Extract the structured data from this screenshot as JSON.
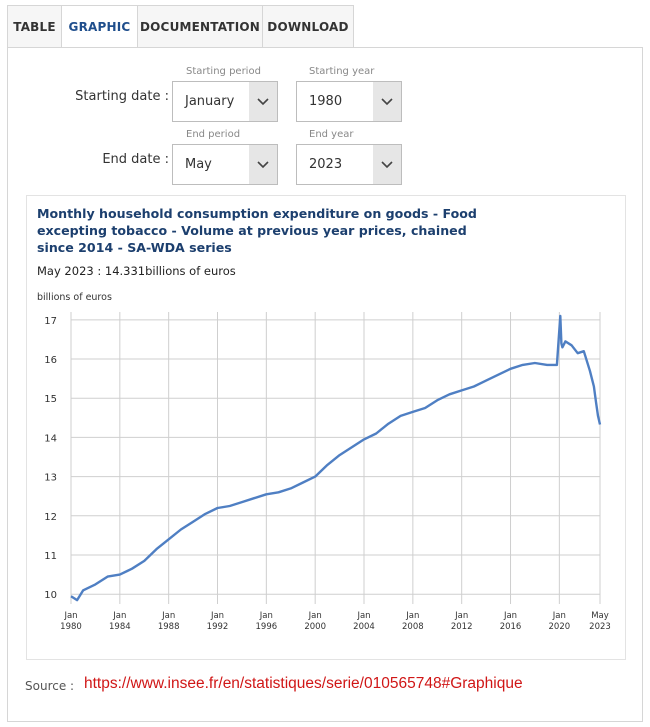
{
  "tabs": [
    {
      "label": "TABLE"
    },
    {
      "label": "GRAPHIC"
    },
    {
      "label": "DOCUMENTATION"
    },
    {
      "label": "DOWNLOAD"
    }
  ],
  "active_tab": "GRAPHIC",
  "form": {
    "start_label": "Starting date :",
    "end_label": "End date :",
    "start_period_caption": "Starting period",
    "start_year_caption": "Starting year",
    "end_period_caption": "End period",
    "end_year_caption": "End year",
    "start_period_value": "January",
    "start_year_value": "1980",
    "end_period_value": "May",
    "end_year_value": "2023"
  },
  "source": {
    "label": "Source :",
    "url": "https://www.insee.fr/en/statistiques/serie/010565748#Graphique"
  },
  "colors": {
    "line": "#4f7fc3",
    "title": "#1c3f6e",
    "link": "#d01616",
    "grid": "#cfcfcf"
  },
  "chart_data": {
    "type": "line",
    "title": "Monthly household consumption expenditure on goods - Food excepting tobacco - Volume at previous year prices, chained since 2014 - SA-WDA series",
    "latest_text": "May 2023 : 14.331billions of euros",
    "ylabel": "billions of euros",
    "xlabel": "",
    "ylim": [
      9.75,
      17.2
    ],
    "yticks": [
      10,
      11,
      12,
      13,
      14,
      15,
      16,
      17
    ],
    "x_start": 1980.0,
    "x_end": 2023.33,
    "xticks": [
      {
        "x": 1980.0,
        "m": "Jan",
        "y": "1980"
      },
      {
        "x": 1984.0,
        "m": "Jan",
        "y": "1984"
      },
      {
        "x": 1988.0,
        "m": "Jan",
        "y": "1988"
      },
      {
        "x": 1992.0,
        "m": "Jan",
        "y": "1992"
      },
      {
        "x": 1996.0,
        "m": "Jan",
        "y": "1996"
      },
      {
        "x": 2000.0,
        "m": "Jan",
        "y": "2000"
      },
      {
        "x": 2004.0,
        "m": "Jan",
        "y": "2004"
      },
      {
        "x": 2008.0,
        "m": "Jan",
        "y": "2008"
      },
      {
        "x": 2012.0,
        "m": "Jan",
        "y": "2012"
      },
      {
        "x": 2016.0,
        "m": "Jan",
        "y": "2016"
      },
      {
        "x": 2020.0,
        "m": "Jan",
        "y": "2020"
      },
      {
        "x": 2023.33,
        "m": "May",
        "y": "2023"
      }
    ],
    "series": [
      {
        "name": "Food excepting tobacco",
        "x": [
          1980.0,
          1980.5,
          1981.0,
          1982.0,
          1983.0,
          1984.0,
          1985.0,
          1986.0,
          1987.0,
          1988.0,
          1989.0,
          1990.0,
          1991.0,
          1992.0,
          1993.0,
          1994.0,
          1995.0,
          1996.0,
          1997.0,
          1998.0,
          1999.0,
          2000.0,
          2001.0,
          2002.0,
          2003.0,
          2004.0,
          2005.0,
          2006.0,
          2007.0,
          2008.0,
          2009.0,
          2010.0,
          2011.0,
          2012.0,
          2013.0,
          2014.0,
          2015.0,
          2016.0,
          2017.0,
          2018.0,
          2019.0,
          2019.8,
          2020.08,
          2020.17,
          2020.25,
          2020.5,
          2021.0,
          2021.5,
          2022.0,
          2022.5,
          2022.83,
          2023.0,
          2023.17,
          2023.33
        ],
        "values": [
          9.95,
          9.85,
          10.1,
          10.25,
          10.45,
          10.5,
          10.65,
          10.85,
          11.15,
          11.4,
          11.65,
          11.85,
          12.05,
          12.2,
          12.25,
          12.35,
          12.45,
          12.55,
          12.6,
          12.7,
          12.85,
          13.0,
          13.3,
          13.55,
          13.75,
          13.95,
          14.1,
          14.35,
          14.55,
          14.65,
          14.75,
          14.95,
          15.1,
          15.2,
          15.3,
          15.45,
          15.6,
          15.75,
          15.85,
          15.9,
          15.85,
          15.85,
          17.1,
          16.4,
          16.3,
          16.45,
          16.35,
          16.15,
          16.2,
          15.7,
          15.3,
          14.9,
          14.55,
          14.33
        ]
      }
    ]
  }
}
